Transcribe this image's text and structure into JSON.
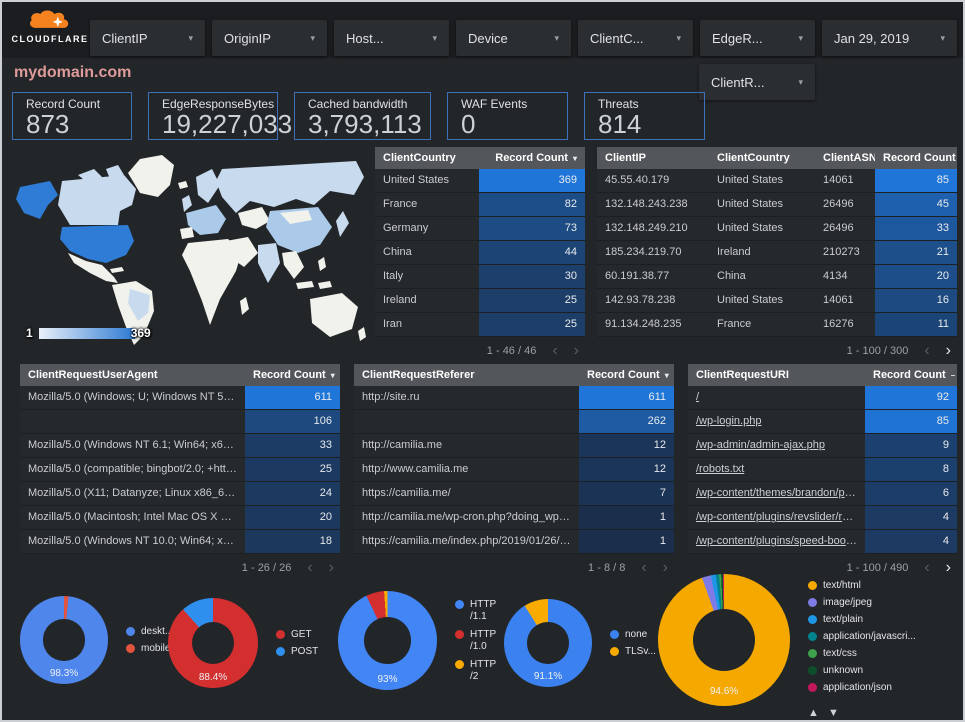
{
  "header": {
    "logo_text": "CLOUDFLARE",
    "chevron": "▾",
    "filters": [
      "ClientIP",
      "OriginIP",
      "Host...",
      "Device",
      "ClientC...",
      "EdgeR..."
    ],
    "filter_row2": "ClientR...",
    "date_label": "Jan 29, 2019"
  },
  "title": "mydomain.com",
  "scorecards": [
    {
      "label": "Record Count",
      "value": "873"
    },
    {
      "label": "EdgeResponseBytes",
      "value": "19,227,033"
    },
    {
      "label": "Cached bandwidth",
      "value": "3,793,113"
    },
    {
      "label": "WAF Events",
      "value": "0"
    },
    {
      "label": "Threats",
      "value": "814"
    }
  ],
  "map": {
    "legend_min": "1",
    "legend_max": "369",
    "colors": {
      "land": "#f2f2ed",
      "light": "#c7daee",
      "medium": "#abc9e8",
      "highlight": "#2e7cd6"
    }
  },
  "heat_scale": {
    "low": "#1b2d48",
    "high": "#1f76d8"
  },
  "pagination_icons": {
    "prev": "‹",
    "next": "›"
  },
  "tables": {
    "client_country": {
      "columns": [
        "ClientCountry",
        "Record Count"
      ],
      "sort_icon": "▾",
      "rows": [
        [
          "United States",
          369
        ],
        [
          "France",
          82
        ],
        [
          "Germany",
          73
        ],
        [
          "China",
          44
        ],
        [
          "Italy",
          30
        ],
        [
          "Ireland",
          25
        ],
        [
          "Iran",
          25
        ]
      ],
      "max": 369,
      "pagination": "1 - 46 / 46",
      "prev_enabled": false,
      "next_enabled": false
    },
    "client_ip": {
      "columns": [
        "ClientIP",
        "ClientCountry",
        "ClientASN",
        "Record Count"
      ],
      "sort_icon": "–",
      "rows": [
        [
          "45.55.40.179",
          "United States",
          "14061",
          85
        ],
        [
          "132.148.243.238",
          "United States",
          "26496",
          45
        ],
        [
          "132.148.249.210",
          "United States",
          "26496",
          33
        ],
        [
          "185.234.219.70",
          "Ireland",
          "210273",
          21
        ],
        [
          "60.191.38.77",
          "China",
          "4134",
          20
        ],
        [
          "142.93.78.238",
          "United States",
          "14061",
          16
        ],
        [
          "91.134.248.235",
          "France",
          "16276",
          11
        ]
      ],
      "max": 85,
      "pagination": "1 - 100 / 300",
      "prev_enabled": false,
      "next_enabled": true
    },
    "user_agent": {
      "columns": [
        "ClientRequestUserAgent",
        "Record Count"
      ],
      "sort_icon": "▾",
      "rows": [
        [
          "Mozilla/5.0 (Windows; U; Windows NT 5.1; en-U...",
          611
        ],
        [
          "",
          106
        ],
        [
          "Mozilla/5.0 (Windows NT 6.1; Win64; x64; rv:64...",
          33
        ],
        [
          "Mozilla/5.0 (compatible; bingbot/2.0; +http://w...",
          25
        ],
        [
          "Mozilla/5.0 (X11; Datanyze; Linux x86_64) Appl...",
          24
        ],
        [
          "Mozilla/5.0 (Macintosh; Intel Mac OS X 10.11; r...",
          20
        ],
        [
          "Mozilla/5.0 (Windows NT 10.0; Win64; x64) App...",
          18
        ]
      ],
      "max": 611,
      "pagination": "1 - 26 / 26",
      "prev_enabled": false,
      "next_enabled": false
    },
    "referer": {
      "columns": [
        "ClientRequestReferer",
        "Record Count"
      ],
      "sort_icon": "▾",
      "rows": [
        [
          "http://site.ru",
          611
        ],
        [
          "",
          262
        ],
        [
          "http://camilia.me",
          12
        ],
        [
          "http://www.camilia.me",
          12
        ],
        [
          "https://camilia.me/",
          7
        ],
        [
          "http://camilia.me/wp-cron.php?doing_wp_cron...",
          1
        ],
        [
          "https://camilia.me/index.php/2019/01/26/stor...",
          1
        ]
      ],
      "max": 611,
      "pagination": "1 - 8 / 8",
      "prev_enabled": false,
      "next_enabled": false
    },
    "request_uri": {
      "columns": [
        "ClientRequestURI",
        "Record Count"
      ],
      "sort_icon": "–",
      "links": true,
      "rows": [
        [
          "/",
          92
        ],
        [
          "/wp-login.php",
          85
        ],
        [
          "/wp-admin/admin-ajax.php",
          9
        ],
        [
          "/robots.txt",
          8
        ],
        [
          "/wp-content/themes/brandon/plu...",
          6
        ],
        [
          "/wp-content/plugins/revslider/rs-p...",
          4
        ],
        [
          "/wp-content/plugins/speed-booste...",
          4
        ]
      ],
      "max": 92,
      "pagination": "1 - 100 / 490",
      "prev_enabled": false,
      "next_enabled": true
    }
  },
  "chart_data": [
    {
      "type": "pie",
      "name": "device-type-donut",
      "label": "98.3%",
      "from": 6,
      "slices": [
        {
          "name": "deskt...",
          "color": "#4e86ec",
          "pct": 98.3
        },
        {
          "name": "mobile",
          "color": "#e2543d",
          "pct": 1.7
        }
      ]
    },
    {
      "type": "pie",
      "name": "request-method-donut",
      "label": "88.4%",
      "from": 0,
      "slices": [
        {
          "name": "GET",
          "color": "#d32f2f",
          "pct": 88.4
        },
        {
          "name": "POST",
          "color": "#2f8fef",
          "pct": 11.6
        }
      ]
    },
    {
      "type": "pie",
      "name": "http-version-donut",
      "label": "93%",
      "from": 0,
      "slices": [
        {
          "name": "HTTP/1.1",
          "color": "#4285f4",
          "pct": 93
        },
        {
          "name": "HTTP/1.0",
          "color": "#d32f2f",
          "pct": 5.9
        },
        {
          "name": "HTTP/2",
          "color": "#f9ab00",
          "pct": 1.1
        }
      ]
    },
    {
      "type": "pie",
      "name": "tls-version-donut",
      "label": "91.1%",
      "from": 0,
      "slices": [
        {
          "name": "none",
          "color": "#3b82f0",
          "pct": 91.1
        },
        {
          "name": "TLSv...",
          "color": "#f9ab00",
          "pct": 8.9
        }
      ]
    },
    {
      "type": "pie",
      "name": "content-type-donut",
      "label": "94.6%",
      "from": 0,
      "legend_arrows": "▲ ▼",
      "slices": [
        {
          "name": "text/html",
          "color": "#f5a800",
          "pct": 94.6
        },
        {
          "name": "image/jpeg",
          "color": "#7e7be6",
          "pct": 2.2
        },
        {
          "name": "text/plain",
          "color": "#1e96e8",
          "pct": 1.2
        },
        {
          "name": "application/javascri...",
          "color": "#00838f",
          "pct": 0.8
        },
        {
          "name": "text/css",
          "color": "#3ea14b",
          "pct": 0.5
        },
        {
          "name": "unknown",
          "color": "#0d4f2a",
          "pct": 0.4
        },
        {
          "name": "application/json",
          "color": "#c2185b",
          "pct": 0.3
        }
      ]
    }
  ]
}
